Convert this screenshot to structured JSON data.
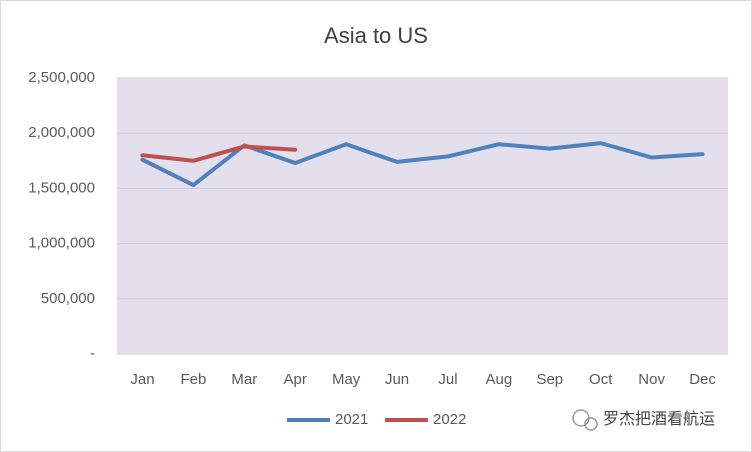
{
  "chart_data": {
    "type": "line",
    "title": "Asia to US",
    "categories": [
      "Jan",
      "Feb",
      "Mar",
      "Apr",
      "May",
      "Jun",
      "Jul",
      "Aug",
      "Sep",
      "Oct",
      "Nov",
      "Dec"
    ],
    "series": [
      {
        "name": "2021",
        "color": "#4f81bd",
        "values": [
          1760000,
          1530000,
          1890000,
          1730000,
          1900000,
          1740000,
          1790000,
          1900000,
          1860000,
          1910000,
          1780000,
          1810000
        ]
      },
      {
        "name": "2022",
        "color": "#c0504d",
        "values": [
          1800000,
          1750000,
          1880000,
          1850000,
          null,
          null,
          null,
          null,
          null,
          null,
          null,
          null
        ]
      }
    ],
    "ylim": [
      0,
      2500000
    ],
    "yticks": [
      {
        "value": 0,
        "label": "-"
      },
      {
        "value": 500000,
        "label": "500,000"
      },
      {
        "value": 1000000,
        "label": "1,000,000"
      },
      {
        "value": 1500000,
        "label": "1,500,000"
      },
      {
        "value": 2000000,
        "label": "2,000,000"
      },
      {
        "value": 2500000,
        "label": "2,500,000"
      }
    ],
    "grid": true,
    "legend": "bottom",
    "watermark": "罗杰把酒看航运"
  }
}
